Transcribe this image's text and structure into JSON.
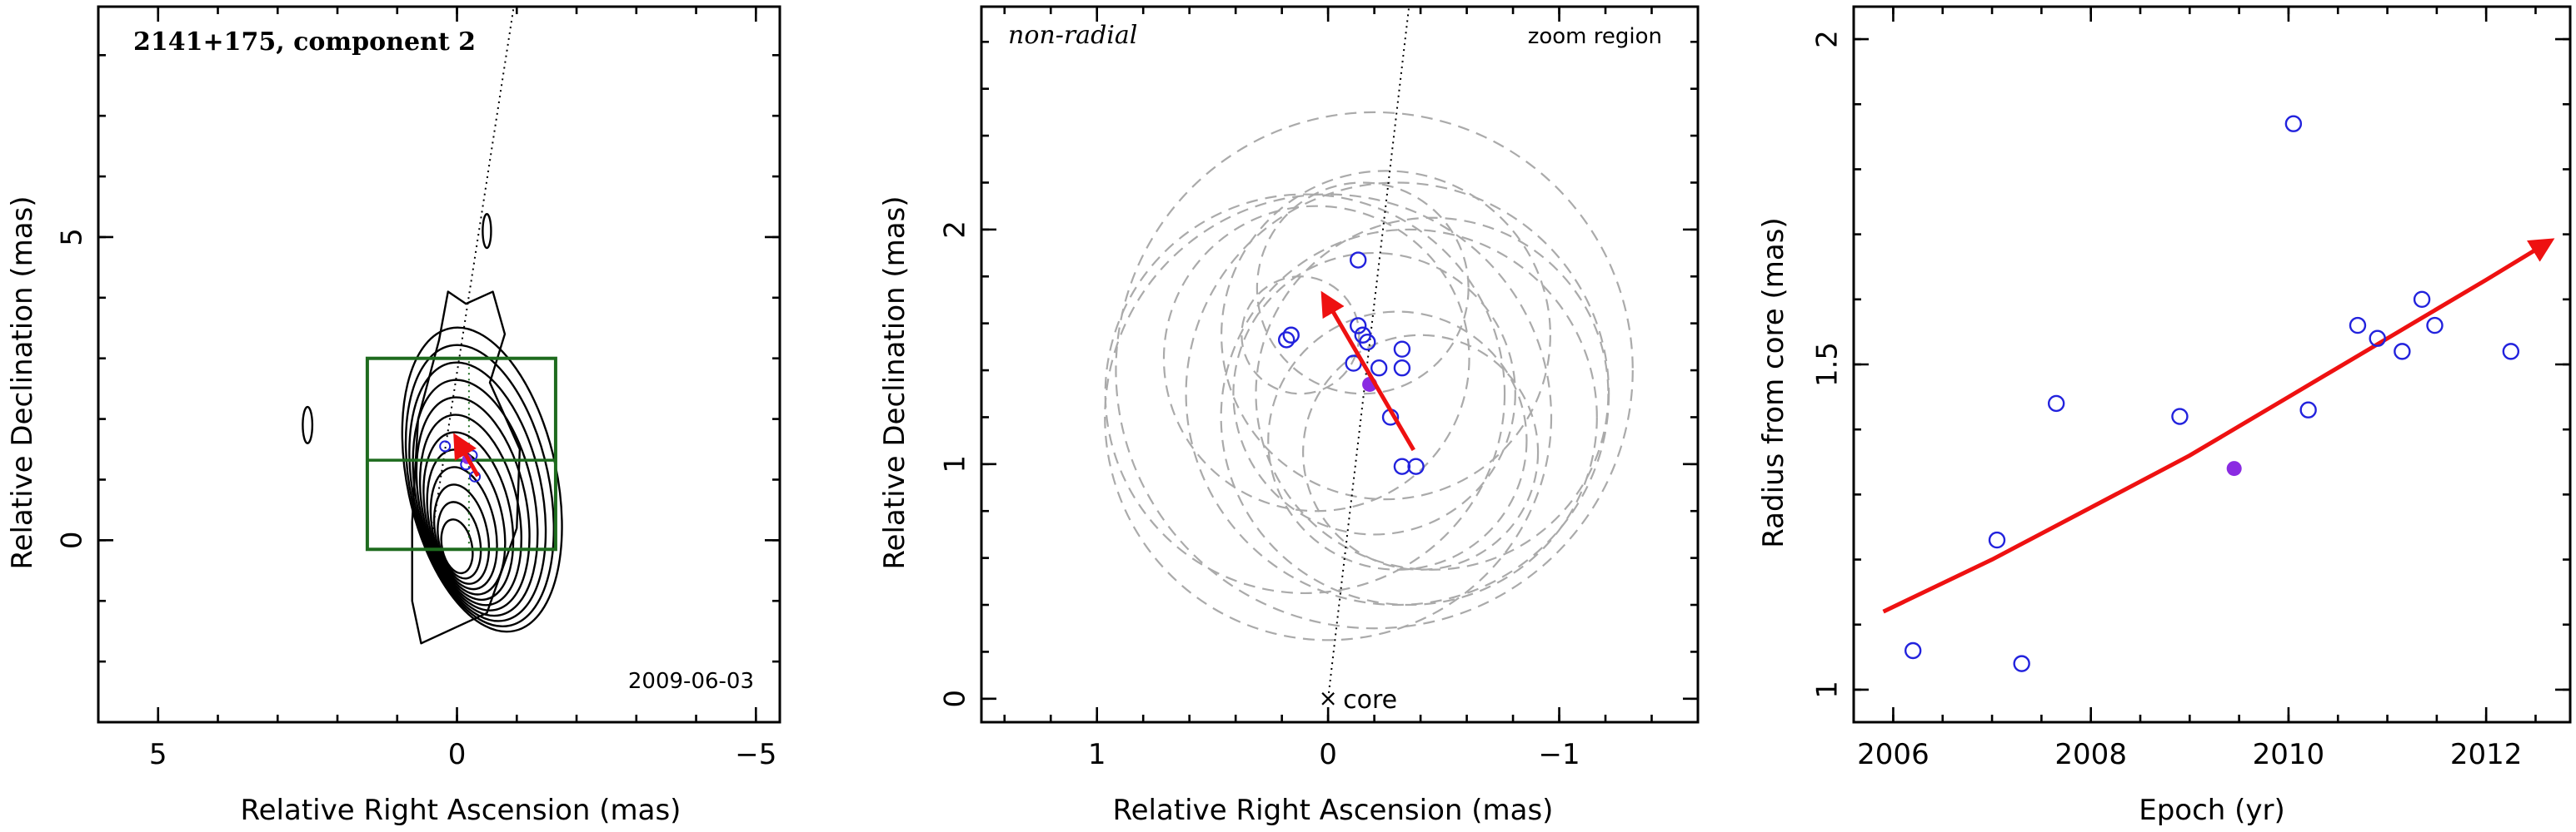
{
  "colors": {
    "frame": "#000000",
    "points": "#2222dd",
    "highlight": "#8a2be2",
    "arrow": "#ee1111",
    "box": "#1e6b1e",
    "circles": "#aaaaaa",
    "contours": "#000000"
  },
  "chart_data": [
    {
      "type": "contour",
      "title": "2141+175, component 2",
      "annotation": "2009-06-03",
      "xlabel": "Relative Right Ascension (mas)",
      "ylabel": "Relative Declination (mas)",
      "xlim": [
        6,
        -5.4
      ],
      "ylim": [
        -3,
        8.8
      ],
      "xticks": [
        5,
        0,
        -5
      ],
      "yticks": [
        0,
        5
      ],
      "grid": false,
      "ridge_line": [
        [
          0.45,
          -0.1
        ],
        [
          -0.95,
          8.8
        ]
      ],
      "zoom_box": {
        "x": [
          1.5,
          -1.65
        ],
        "y": [
          -0.15,
          3.0
        ],
        "mid_y": 1.32
      },
      "positions": [
        {
          "x": 0.2,
          "y": 1.55
        },
        {
          "x": -0.05,
          "y": 1.5
        },
        {
          "x": -0.25,
          "y": 1.4
        },
        {
          "x": -0.15,
          "y": 1.25
        },
        {
          "x": -0.3,
          "y": 1.05
        }
      ],
      "mean_position": {
        "x": -0.17,
        "y": 1.34
      },
      "velocity_arrow": {
        "from": [
          -0.35,
          1.06
        ],
        "to": [
          0.02,
          1.7
        ]
      }
    },
    {
      "type": "scatter",
      "label_left": "non-radial",
      "label_right": "zoom region",
      "core_label": "core",
      "xlabel": "Relative Right Ascension (mas)",
      "ylabel": "Relative Declination (mas)",
      "xlim": [
        1.5,
        -1.6
      ],
      "ylim": [
        -0.1,
        2.95
      ],
      "xticks": [
        1,
        0,
        -1
      ],
      "yticks": [
        0,
        1,
        2
      ],
      "grid": false,
      "core": {
        "x": 0,
        "y": 0
      },
      "ridge_line": [
        [
          0,
          0
        ],
        [
          -0.35,
          2.95
        ]
      ],
      "points": [
        {
          "x": -0.13,
          "y": 1.87
        },
        {
          "x": -0.13,
          "y": 1.59
        },
        {
          "x": -0.15,
          "y": 1.55
        },
        {
          "x": -0.17,
          "y": 1.52
        },
        {
          "x": 0.18,
          "y": 1.53
        },
        {
          "x": 0.16,
          "y": 1.55
        },
        {
          "x": -0.32,
          "y": 1.49
        },
        {
          "x": -0.11,
          "y": 1.43
        },
        {
          "x": -0.22,
          "y": 1.41
        },
        {
          "x": -0.32,
          "y": 1.41
        },
        {
          "x": -0.27,
          "y": 1.2
        },
        {
          "x": -0.32,
          "y": 0.99
        },
        {
          "x": -0.38,
          "y": 0.99
        }
      ],
      "mean_point": {
        "x": -0.18,
        "y": 1.34
      },
      "velocity_arrow": {
        "from": [
          -0.37,
          1.06
        ],
        "to": [
          0.02,
          1.72
        ]
      },
      "error_circles": [
        {
          "x": -0.2,
          "y": 1.3,
          "r": 0.6
        },
        {
          "x": -0.2,
          "y": 1.4,
          "r": 1.1
        },
        {
          "x": -0.3,
          "y": 1.3,
          "r": 0.9
        },
        {
          "x": 0.05,
          "y": 1.45,
          "r": 0.65
        },
        {
          "x": -0.35,
          "y": 1.2,
          "r": 0.8
        },
        {
          "x": -0.15,
          "y": 1.75,
          "r": 0.45
        },
        {
          "x": 0.12,
          "y": 1.55,
          "r": 0.25
        },
        {
          "x": -0.3,
          "y": 1.1,
          "r": 0.55
        },
        {
          "x": -0.45,
          "y": 1.3,
          "r": 0.75
        },
        {
          "x": 0.1,
          "y": 1.3,
          "r": 0.85
        },
        {
          "x": -0.25,
          "y": 1.55,
          "r": 0.7
        },
        {
          "x": -0.4,
          "y": 1.05,
          "r": 0.5
        },
        {
          "x": 0.0,
          "y": 1.2,
          "r": 0.95
        }
      ]
    },
    {
      "type": "scatter",
      "xlabel": "Epoch (yr)",
      "ylabel": "Radius from core (mas)",
      "xlim": [
        2005.6,
        2012.85
      ],
      "ylim": [
        0.95,
        2.05
      ],
      "xticks": [
        2006,
        2008,
        2010,
        2012
      ],
      "yticks": [
        1,
        1.5,
        2
      ],
      "yticklabels": [
        "1",
        "1.5",
        "2"
      ],
      "grid": false,
      "series": [
        {
          "x": [
            2006.2,
            2007.05,
            2007.3,
            2007.65,
            2008.9,
            2010.05,
            2010.2,
            2010.7,
            2010.9,
            2011.15,
            2011.35,
            2011.48,
            2012.25
          ],
          "y": [
            1.06,
            1.23,
            1.04,
            1.44,
            1.42,
            1.87,
            1.43,
            1.56,
            1.54,
            1.52,
            1.6,
            1.56,
            1.52
          ]
        }
      ],
      "mean_point": {
        "x": 2009.45,
        "y": 1.34
      },
      "fit_curve": {
        "x": [
          2005.9,
          2007.0,
          2008.0,
          2009.0,
          2010.0,
          2011.0,
          2012.0,
          2012.65
        ],
        "y": [
          1.12,
          1.2,
          1.28,
          1.36,
          1.45,
          1.54,
          1.63,
          1.69
        ]
      }
    }
  ]
}
